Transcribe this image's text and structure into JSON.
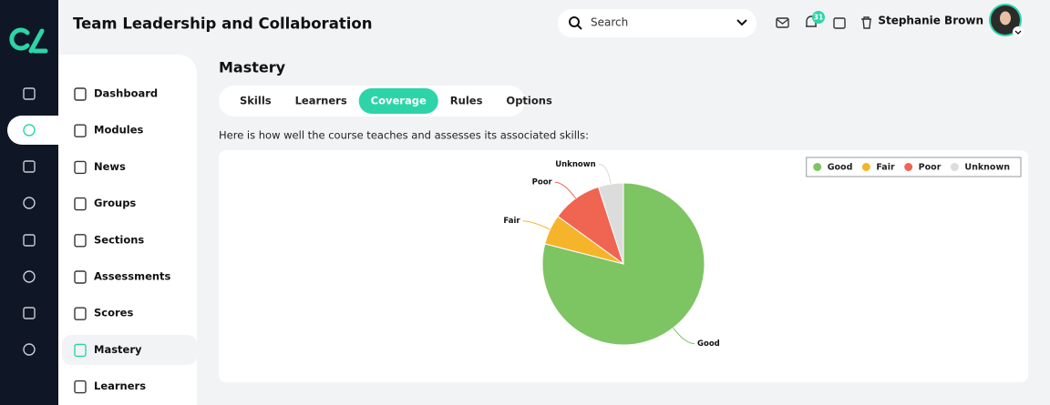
{
  "header": {
    "title": "Team Leadership and Collaboration",
    "search_placeholder": "Search",
    "notification_count": 31,
    "user_name": "Stephanie Brown"
  },
  "sidebar": {
    "items": [
      "Dashboard",
      "Modules",
      "News",
      "Groups",
      "Sections",
      "Assessments",
      "Scores",
      "Mastery",
      "Learners"
    ],
    "active_index": 7
  },
  "page": {
    "title": "Mastery",
    "tabs": [
      "Skills",
      "Learners",
      "Coverage",
      "Rules",
      "Options"
    ],
    "active_tab_index": 2,
    "description": "Here is how well the course teaches and assesses its associated skills:"
  },
  "chart_data": {
    "type": "pie",
    "categories": [
      "Good",
      "Fair",
      "Poor",
      "Unknown"
    ],
    "values": [
      79,
      6,
      10,
      5
    ],
    "colors": [
      "#7dc462",
      "#f5b42a",
      "#f06552",
      "#dcdcdc"
    ],
    "legend": "top-right"
  }
}
